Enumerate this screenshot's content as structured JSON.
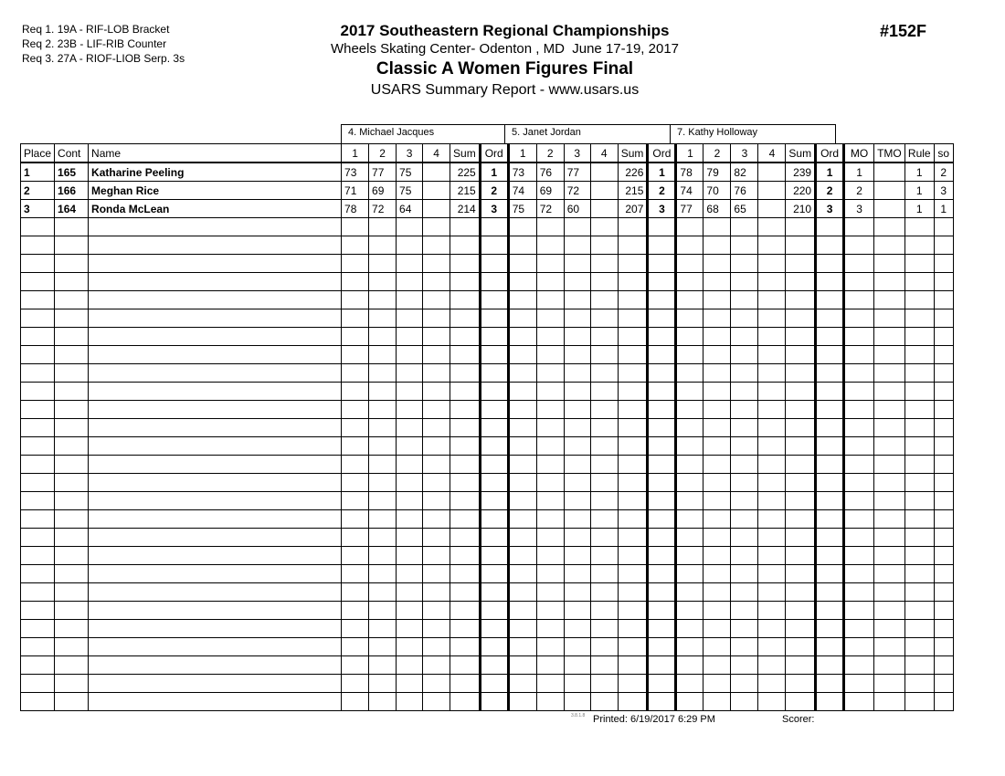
{
  "requirements": [
    "Req  1.  19A - RIF-LOB Bracket",
    "Req  2.  23B - LIF-RIB Counter",
    "Req  3.  27A - RIOF-LIOB Serp. 3s"
  ],
  "header": {
    "title": "2017 Southeastern Regional Championships",
    "venue": "Wheels Skating Center- Odenton , MD  June 17-19, 2017",
    "event": "Classic A Women Figures Final",
    "report": "USARS Summary Report - www.usars.us",
    "event_number": "#152F"
  },
  "judges": [
    "4.  Michael Jacques",
    "5.  Janet Jordan",
    "7.  Kathy Holloway"
  ],
  "columns": {
    "place": "Place",
    "cont": "Cont",
    "name": "Name",
    "scores": [
      "1",
      "2",
      "3",
      "4",
      "Sum",
      "Ord"
    ],
    "mo": "MO",
    "tmo": "TMO",
    "rule": "Rule",
    "so": "so"
  },
  "rows": [
    {
      "place": "1",
      "cont": "165",
      "name": "Katharine Peeling",
      "judges": [
        [
          "73",
          "77",
          "75",
          "",
          "225",
          "1"
        ],
        [
          "73",
          "76",
          "77",
          "",
          "226",
          "1"
        ],
        [
          "78",
          "79",
          "82",
          "",
          "239",
          "1"
        ]
      ],
      "mo": "1",
      "tmo": "",
      "rule": "1",
      "so": "2"
    },
    {
      "place": "2",
      "cont": "166",
      "name": "Meghan Rice",
      "judges": [
        [
          "71",
          "69",
          "75",
          "",
          "215",
          "2"
        ],
        [
          "74",
          "69",
          "72",
          "",
          "215",
          "2"
        ],
        [
          "74",
          "70",
          "76",
          "",
          "220",
          "2"
        ]
      ],
      "mo": "2",
      "tmo": "",
      "rule": "1",
      "so": "3"
    },
    {
      "place": "3",
      "cont": "164",
      "name": "Ronda McLean",
      "judges": [
        [
          "78",
          "72",
          "64",
          "",
          "214",
          "3"
        ],
        [
          "75",
          "72",
          "60",
          "",
          "207",
          "3"
        ],
        [
          "77",
          "68",
          "65",
          "",
          "210",
          "3"
        ]
      ],
      "mo": "3",
      "tmo": "",
      "rule": "1",
      "so": "1"
    }
  ],
  "footer": {
    "version": "3.8.1.8",
    "printed": "Printed:  6/19/2017  6:29 PM",
    "scorer": "Scorer:"
  }
}
